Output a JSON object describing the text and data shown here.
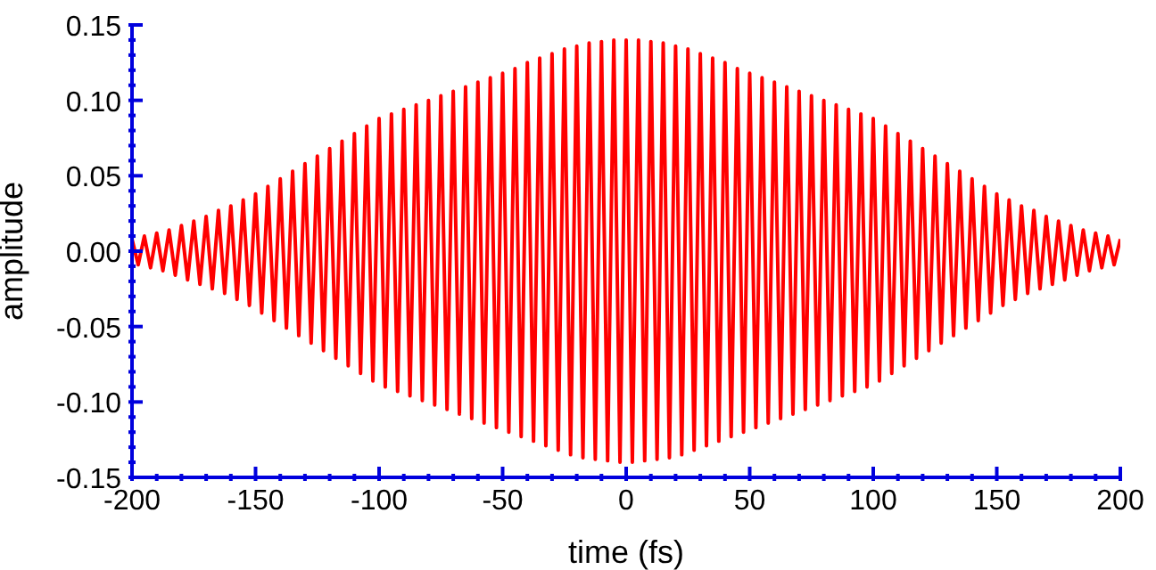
{
  "chart_data": {
    "type": "line",
    "xlabel": "time (fs)",
    "ylabel": "amplitude",
    "xlim": [
      -200,
      200
    ],
    "ylim": [
      -0.15,
      0.15
    ],
    "xticks": [
      -200,
      {
        "value": -190,
        "label": null
      },
      {
        "value": -180,
        "label": null
      },
      {
        "value": -170,
        "label": null
      },
      {
        "value": -160,
        "label": null
      },
      -150,
      {
        "value": -140,
        "label": null
      },
      {
        "value": -130,
        "label": null
      },
      {
        "value": -120,
        "label": null
      },
      {
        "value": -110,
        "label": null
      },
      -100,
      {
        "value": -90,
        "label": null
      },
      {
        "value": -80,
        "label": null
      },
      {
        "value": -70,
        "label": null
      },
      {
        "value": -60,
        "label": null
      },
      -50,
      {
        "value": -40,
        "label": null
      },
      {
        "value": -30,
        "label": null
      },
      {
        "value": -20,
        "label": null
      },
      {
        "value": -10,
        "label": null
      },
      0,
      {
        "value": 10,
        "label": null
      },
      {
        "value": 20,
        "label": null
      },
      {
        "value": 30,
        "label": null
      },
      {
        "value": 40,
        "label": null
      },
      50,
      {
        "value": 60,
        "label": null
      },
      {
        "value": 70,
        "label": null
      },
      {
        "value": 80,
        "label": null
      },
      {
        "value": 90,
        "label": null
      },
      100,
      {
        "value": 110,
        "label": null
      },
      {
        "value": 120,
        "label": null
      },
      {
        "value": 130,
        "label": null
      },
      {
        "value": 140,
        "label": null
      },
      150,
      {
        "value": 160,
        "label": null
      },
      {
        "value": 170,
        "label": null
      },
      {
        "value": 180,
        "label": null
      },
      {
        "value": 190,
        "label": null
      },
      200
    ],
    "yticks": [
      -0.15,
      {
        "value": -0.14,
        "label": null
      },
      {
        "value": -0.13,
        "label": null
      },
      {
        "value": -0.12,
        "label": null
      },
      {
        "value": -0.11,
        "label": null
      },
      {
        "value": -0.1,
        "label": "-0.10"
      },
      {
        "value": -0.09,
        "label": null
      },
      {
        "value": -0.08,
        "label": null
      },
      {
        "value": -0.07,
        "label": null
      },
      {
        "value": -0.06,
        "label": null
      },
      -0.05,
      {
        "value": -0.04,
        "label": null
      },
      {
        "value": -0.03,
        "label": null
      },
      {
        "value": -0.02,
        "label": null
      },
      {
        "value": -0.01,
        "label": null
      },
      {
        "value": 0,
        "label": "0.00"
      },
      {
        "value": 0.01,
        "label": null
      },
      {
        "value": 0.02,
        "label": null
      },
      {
        "value": 0.03,
        "label": null
      },
      {
        "value": 0.04,
        "label": null
      },
      0.05,
      {
        "value": 0.06,
        "label": null
      },
      {
        "value": 0.07,
        "label": null
      },
      {
        "value": 0.08,
        "label": null
      },
      {
        "value": 0.09,
        "label": null
      },
      {
        "value": 0.1,
        "label": "0.10"
      },
      {
        "value": 0.11,
        "label": null
      },
      {
        "value": 0.12,
        "label": null
      },
      {
        "value": 0.13,
        "label": null
      },
      {
        "value": 0.14,
        "label": null
      },
      0.15
    ],
    "x": [
      -200,
      -197.5,
      -195,
      -192.5,
      -190,
      -187.5,
      -185,
      -182.5,
      -180,
      -177.5,
      -175,
      -172.5,
      -170,
      -167.5,
      -165,
      -162.5,
      -160,
      -157.5,
      -155,
      -152.5,
      -150,
      -147.5,
      -145,
      -142.5,
      -140,
      -137.5,
      -135,
      -132.5,
      -130,
      -127.5,
      -125,
      -122.5,
      -120,
      -117.5,
      -115,
      -112.5,
      -110,
      -107.5,
      -105,
      -102.5,
      -100,
      -97.5,
      -95,
      -92.5,
      -90,
      -87.5,
      -85,
      -82.5,
      -80,
      -77.5,
      -75,
      -72.5,
      -70,
      -67.5,
      -65,
      -62.5,
      -60,
      -57.5,
      -55,
      -52.5,
      -50,
      -47.5,
      -45,
      -42.5,
      -40,
      -37.5,
      -35,
      -32.5,
      -30,
      -27.5,
      -25,
      -22.5,
      -20,
      -17.5,
      -15,
      -12.5,
      -10,
      -7.5,
      -5,
      -2.5,
      0,
      2.5,
      5,
      7.5,
      10,
      12.5,
      15,
      17.5,
      20,
      22.5,
      25,
      27.5,
      30,
      32.5,
      35,
      37.5,
      40,
      42.5,
      45,
      47.5,
      50,
      52.5,
      55,
      57.5,
      60,
      62.5,
      65,
      67.5,
      70,
      72.5,
      75,
      77.5,
      80,
      82.5,
      85,
      87.5,
      90,
      92.5,
      95,
      97.5,
      100,
      102.5,
      105,
      107.5,
      110,
      112.5,
      115,
      117.5,
      120,
      122.5,
      125,
      127.5,
      130,
      132.5,
      135,
      137.5,
      140,
      142.5,
      145,
      147.5,
      150,
      152.5,
      155,
      157.5,
      160,
      162.5,
      165,
      167.5,
      170,
      172.5,
      175,
      177.5,
      180,
      182.5,
      185,
      187.5,
      190,
      192.5,
      195,
      197.5,
      200
    ],
    "series": [
      {
        "color": "#ff0000",
        "values": [
          0.008,
          -0.009,
          0.01,
          -0.011,
          0.012,
          -0.013,
          0.014,
          -0.016,
          0.017,
          -0.019,
          0.02,
          -0.022,
          0.023,
          -0.025,
          0.027,
          -0.028,
          0.03,
          -0.032,
          0.034,
          -0.036,
          0.038,
          -0.041,
          0.043,
          -0.046,
          0.048,
          -0.051,
          0.053,
          -0.056,
          0.058,
          -0.061,
          0.063,
          -0.066,
          0.068,
          -0.071,
          0.073,
          -0.076,
          0.078,
          -0.081,
          0.083,
          -0.086,
          0.088,
          -0.09,
          0.091,
          -0.093,
          0.094,
          -0.096,
          0.097,
          -0.099,
          0.1,
          -0.102,
          0.103,
          -0.105,
          0.106,
          -0.108,
          0.109,
          -0.111,
          0.112,
          -0.114,
          0.115,
          -0.117,
          0.118,
          -0.12,
          0.121,
          -0.123,
          0.125,
          -0.126,
          0.128,
          -0.129,
          0.131,
          -0.132,
          0.134,
          -0.135,
          0.136,
          -0.137,
          0.138,
          -0.138,
          0.139,
          -0.139,
          0.14,
          -0.14,
          0.14,
          -0.14,
          0.14,
          -0.139,
          0.139,
          -0.138,
          0.138,
          -0.137,
          0.136,
          -0.135,
          0.134,
          -0.132,
          0.131,
          -0.129,
          0.128,
          -0.126,
          0.125,
          -0.123,
          0.121,
          -0.12,
          0.118,
          -0.117,
          0.115,
          -0.114,
          0.112,
          -0.111,
          0.109,
          -0.108,
          0.106,
          -0.105,
          0.103,
          -0.102,
          0.1,
          -0.099,
          0.097,
          -0.096,
          0.094,
          -0.093,
          0.091,
          -0.09,
          0.088,
          -0.086,
          0.083,
          -0.081,
          0.078,
          -0.076,
          0.073,
          -0.071,
          0.068,
          -0.066,
          0.063,
          -0.061,
          0.058,
          -0.056,
          0.053,
          -0.051,
          0.048,
          -0.046,
          0.043,
          -0.041,
          0.038,
          -0.036,
          0.034,
          -0.032,
          0.03,
          -0.028,
          0.027,
          -0.025,
          0.023,
          -0.022,
          0.02,
          -0.019,
          0.017,
          -0.016,
          0.014,
          -0.013,
          0.012,
          -0.011,
          0.01,
          -0.009,
          0.008
        ]
      }
    ]
  }
}
